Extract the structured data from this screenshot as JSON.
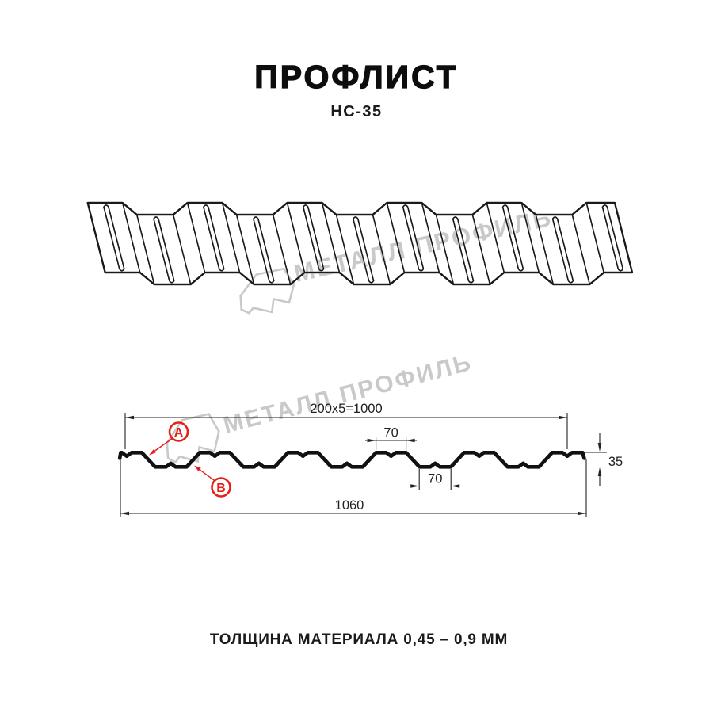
{
  "header": {
    "title": "ПРОФЛИСТ",
    "subtitle": "НС-35"
  },
  "watermark": {
    "text": "МЕТАЛЛ ПРОФИЛЬ",
    "color": "#c9c9c9",
    "logo_name": "metal-profil-logo"
  },
  "diagram": {
    "dimensions": {
      "top_width": "200x5=1000",
      "rib_top_width": "70",
      "rib_bottom_width": "70",
      "height": "35",
      "full_width": "1060"
    },
    "labels": {
      "side_a": "A",
      "side_b": "B"
    },
    "profile_specs": {
      "pitch_mm": 200,
      "pitch_count": 5,
      "useful_width_mm": 1000,
      "full_width_mm": 1060,
      "height_mm": 35,
      "rib_top_mm": 70,
      "rib_bottom_mm": 70
    },
    "colors": {
      "line": "#1a1a1a",
      "annotation_red": "#e3211a",
      "watermark_gray": "#c9c9c9",
      "background": "#ffffff"
    }
  },
  "footer": {
    "caption": "ТОЛЩИНА МАТЕРИАЛА 0,45 – 0,9 ММ"
  }
}
